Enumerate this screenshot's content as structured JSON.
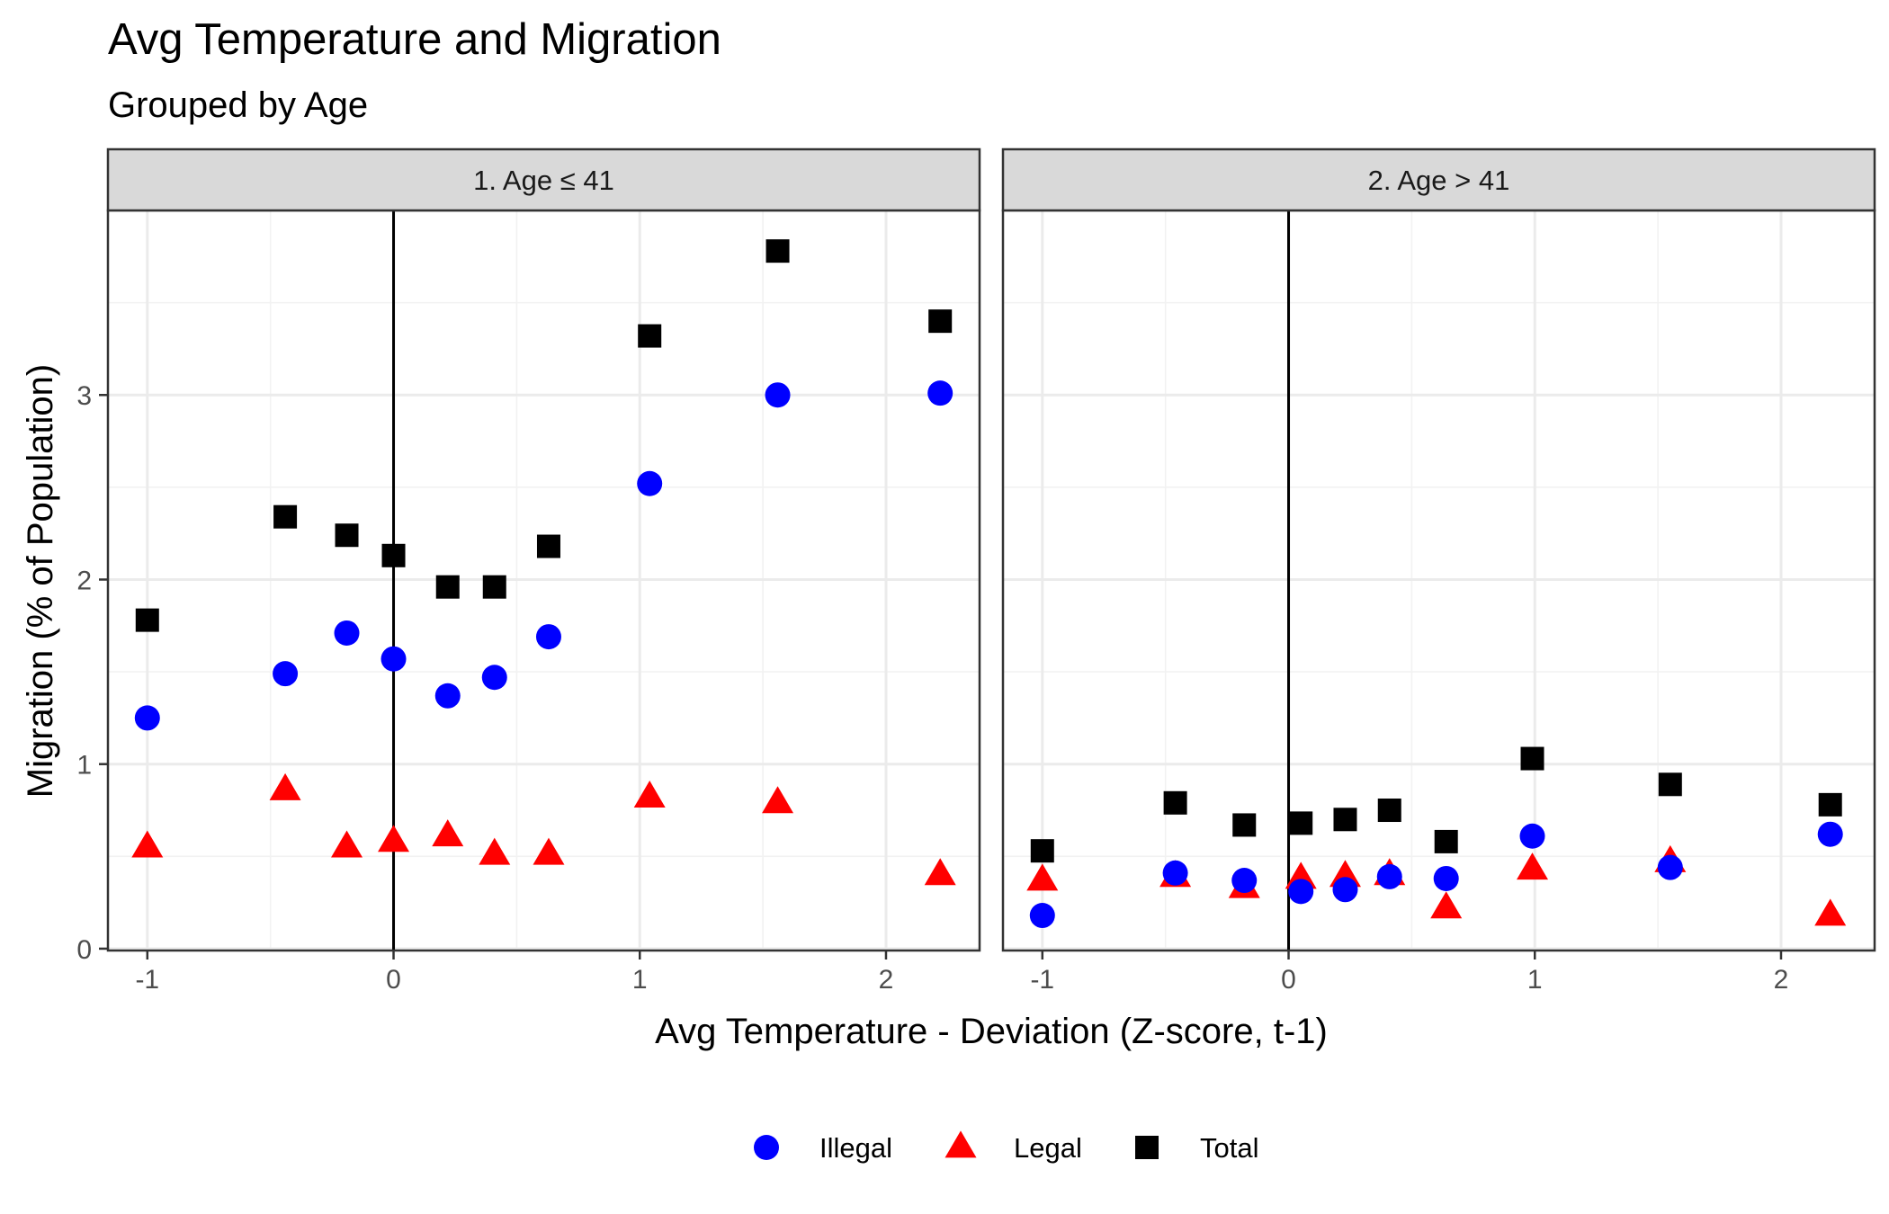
{
  "chart_data": {
    "type": "scatter",
    "title": "Avg Temperature and Migration",
    "subtitle": "Grouped by Age",
    "xlabel": "Avg Temperature - Deviation (Z-score, t-1)",
    "ylabel": "Migration (% of Population)",
    "xlim": [
      -1.16,
      2.38
    ],
    "ylim": [
      -0.01,
      4.0
    ],
    "x_ticks": [
      -1,
      0,
      1,
      2
    ],
    "y_ticks": [
      0,
      1,
      2,
      3
    ],
    "vline_x": 0,
    "grid": true,
    "legend_position": "bottom",
    "legend": [
      {
        "label": "Illegal",
        "shape": "circle",
        "color": "#0000ff"
      },
      {
        "label": "Legal",
        "shape": "triangle",
        "color": "#ff0000"
      },
      {
        "label": "Total",
        "shape": "square",
        "color": "#000000"
      }
    ],
    "panels": [
      {
        "label": "1. Age ≤ 41",
        "x": [
          -1.0,
          -0.44,
          -0.19,
          0.0,
          0.22,
          0.41,
          0.63,
          1.04,
          1.56,
          2.22
        ],
        "series": [
          {
            "name": "Illegal",
            "values": [
              1.25,
              1.49,
              1.71,
              1.57,
              1.37,
              1.47,
              1.69,
              2.52,
              3.0,
              3.01
            ]
          },
          {
            "name": "Legal",
            "values": [
              0.55,
              0.86,
              0.55,
              0.58,
              0.61,
              0.51,
              0.51,
              0.82,
              0.79,
              0.4
            ]
          },
          {
            "name": "Total",
            "values": [
              1.78,
              2.34,
              2.24,
              2.13,
              1.96,
              1.96,
              2.18,
              3.32,
              3.78,
              3.4
            ]
          }
        ]
      },
      {
        "label": "2. Age > 41",
        "x": [
          -1.0,
          -0.46,
          -0.18,
          0.05,
          0.23,
          0.41,
          0.64,
          0.99,
          1.55,
          2.2
        ],
        "series": [
          {
            "name": "Illegal",
            "values": [
              0.18,
              0.41,
              0.37,
              0.31,
              0.32,
              0.39,
              0.38,
              0.61,
              0.44,
              0.62
            ]
          },
          {
            "name": "Legal",
            "values": [
              0.37,
              0.39,
              0.33,
              0.38,
              0.39,
              0.4,
              0.22,
              0.43,
              0.47,
              0.18
            ]
          },
          {
            "name": "Total",
            "values": [
              0.53,
              0.79,
              0.67,
              0.68,
              0.7,
              0.75,
              0.58,
              1.03,
              0.89,
              0.78
            ]
          }
        ]
      }
    ]
  }
}
